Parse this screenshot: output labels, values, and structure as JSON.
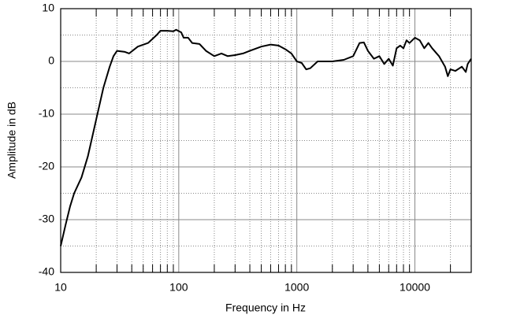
{
  "chart_data": {
    "type": "line",
    "xlabel": "Frequency in Hz",
    "ylabel": "Amplitude in dB",
    "x": [
      10,
      11,
      12,
      13,
      15,
      17,
      20,
      23,
      26,
      28,
      30,
      35,
      38,
      45,
      55,
      65,
      70,
      80,
      90,
      95,
      105,
      110,
      120,
      130,
      150,
      170,
      200,
      230,
      260,
      300,
      350,
      400,
      500,
      600,
      700,
      800,
      900,
      1000,
      1100,
      1200,
      1300,
      1500,
      2000,
      2500,
      3000,
      3400,
      3700,
      4000,
      4500,
      5000,
      5500,
      6000,
      6500,
      7000,
      7500,
      8000,
      8500,
      9000,
      10000,
      11000,
      12000,
      13000,
      14000,
      16000,
      18000,
      19000,
      20000,
      22000,
      25000,
      27000,
      28000,
      30000
    ],
    "values": [
      -35,
      -31,
      -27.5,
      -25,
      -22,
      -18,
      -11,
      -5,
      -1,
      1,
      2,
      1.8,
      1.5,
      2.8,
      3.5,
      5,
      5.8,
      5.8,
      5.7,
      6,
      5.5,
      4.5,
      4.5,
      3.5,
      3.3,
      2,
      1,
      1.5,
      1,
      1.2,
      1.5,
      2,
      2.8,
      3.2,
      3,
      2.3,
      1.5,
      0,
      -0.3,
      -1.5,
      -1.3,
      0,
      0,
      0.3,
      1,
      3.5,
      3.6,
      2,
      0.5,
      1,
      -0.5,
      0.5,
      -0.8,
      2.5,
      3,
      2.5,
      4,
      3.5,
      4.5,
      4,
      2.5,
      3.5,
      2.5,
      1,
      -1,
      -2.8,
      -1.5,
      -1.8,
      -1,
      -2,
      -0.5,
      0.5
    ],
    "color": "#000000",
    "xlim": [
      10,
      30000
    ],
    "xticks": [
      10,
      100,
      1000,
      10000
    ],
    "xscale": "log",
    "ylim": [
      -40,
      10
    ],
    "yticks": [
      -40,
      -30,
      -20,
      -10,
      0,
      10
    ],
    "grid": true,
    "minor_grid": true
  }
}
